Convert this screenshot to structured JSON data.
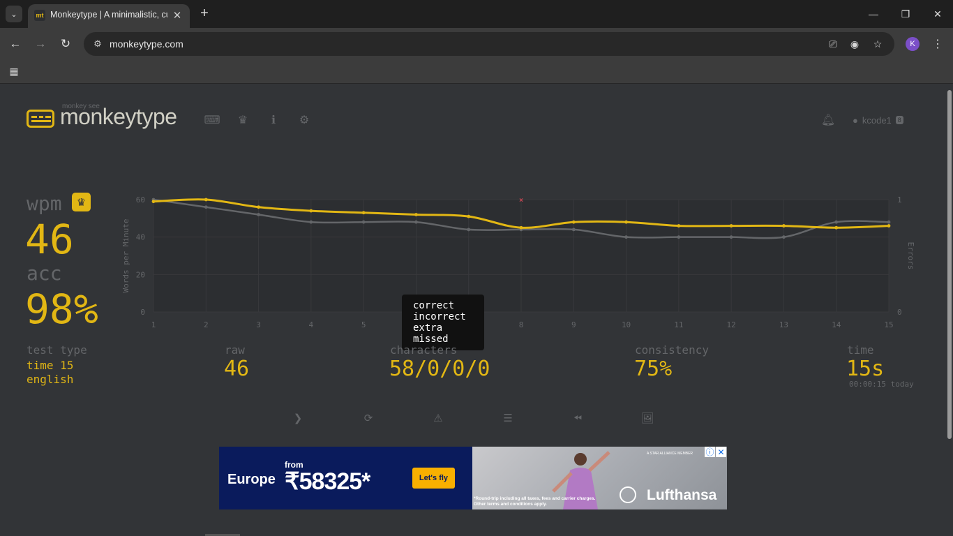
{
  "browser": {
    "tab_title": "Monkeytype | A minimalistic, cu",
    "tab_favicon": "mt",
    "url": "monkeytype.com",
    "profile_initial": "K"
  },
  "header": {
    "logo_sub": "monkey see",
    "logo_text": "monkeytype",
    "username": "kcode1",
    "level": "8"
  },
  "result": {
    "wpm_label": "wpm",
    "wpm": "46",
    "acc_label": "acc",
    "acc": "98%",
    "test_type_label": "test type",
    "test_type_mode": "time 15",
    "test_type_lang": "english",
    "raw_label": "raw",
    "raw": "46",
    "characters_label": "characters",
    "characters": "58/0/0/0",
    "consistency_label": "consistency",
    "consistency": "75%",
    "time_label": "time",
    "time": "15s",
    "time_detail": "00:00:15 today"
  },
  "tooltip": {
    "lines": [
      "correct",
      "incorrect",
      "extra",
      "missed"
    ]
  },
  "chart_data": {
    "type": "line",
    "x": [
      1,
      2,
      3,
      4,
      5,
      6,
      7,
      8,
      9,
      10,
      11,
      12,
      13,
      14,
      15
    ],
    "ylabel": "Words per Minute",
    "y2label": "Errors",
    "ylim": [
      0,
      60
    ],
    "y2lim": [
      0,
      1
    ],
    "y_ticks": [
      0,
      20,
      40,
      60
    ],
    "y2_ticks": [
      0,
      1
    ],
    "series": [
      {
        "role": "wpm",
        "color": "#e2b714",
        "values": [
          59,
          60,
          56,
          54,
          53,
          52,
          51,
          45,
          48,
          48,
          46,
          46,
          46,
          45,
          46
        ]
      },
      {
        "role": "raw",
        "color": "#646669",
        "values": [
          60,
          56,
          52,
          48,
          48,
          48,
          44,
          44,
          44,
          40,
          40,
          40,
          40,
          48,
          48
        ]
      }
    ],
    "errors": [
      {
        "x": 8,
        "y": 1
      }
    ],
    "grid": true
  },
  "ad": {
    "region": "Europe",
    "from": "from",
    "price": "₹58325*",
    "cta": "Let's fly",
    "brand": "Lufthansa",
    "alliance": "A STAR ALLIANCE MEMBER",
    "fine_print_1": "*Round-trip including all taxes, fees and carrier charges.",
    "fine_print_2": "Other terms and conditions apply."
  },
  "colors": {
    "bg": "#323437",
    "main": "#e2b714",
    "sub": "#646669",
    "text": "#d1d0c5"
  }
}
